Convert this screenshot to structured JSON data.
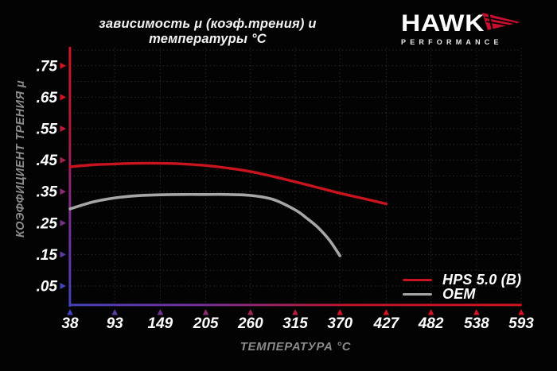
{
  "header": {
    "title": "зависимость μ (коэф.трения) и температуры °C",
    "logo": {
      "brand": "HAWK",
      "subtitle": "PERFORMANCE"
    }
  },
  "chart_data": {
    "type": "line",
    "title": "зависимость μ (коэф.трения) и температуры °C",
    "xlabel": "ТЕМПЕРАТУРА °C",
    "ylabel": "КОЭФФИЦИЕНТ ТРЕНИЯ μ",
    "x_ticks": [
      38,
      93,
      149,
      205,
      260,
      315,
      370,
      427,
      482,
      538,
      593
    ],
    "y_ticks": [
      0.05,
      0.15,
      0.25,
      0.35,
      0.45,
      0.55,
      0.65,
      0.75
    ],
    "y_tick_labels": [
      ".05",
      ".15",
      ".25",
      ".35",
      ".45",
      ".55",
      ".65",
      ".75"
    ],
    "xlim": [
      38,
      593
    ],
    "ylim": [
      0,
      0.81
    ],
    "grid": {
      "style": "dotted",
      "horizontal_step": 0.05,
      "vertical_at_ticks": true
    },
    "legend_position": "bottom-right",
    "series": [
      {
        "name": "HPS 5.0 (B)",
        "color": "#c9131f",
        "x": [
          38,
          66,
          93,
          121,
          149,
          177,
          205,
          232,
          260,
          288,
          315,
          343,
          370,
          399,
          427
        ],
        "y": [
          0.429,
          0.435,
          0.438,
          0.44,
          0.44,
          0.438,
          0.433,
          0.425,
          0.414,
          0.398,
          0.381,
          0.363,
          0.345,
          0.328,
          0.311
        ]
      },
      {
        "name": "OEM",
        "color": "#a6a6a6",
        "x": [
          38,
          66,
          93,
          121,
          149,
          177,
          205,
          232,
          260,
          288,
          315,
          329,
          343,
          357,
          370
        ],
        "y": [
          0.295,
          0.317,
          0.33,
          0.337,
          0.34,
          0.341,
          0.341,
          0.341,
          0.338,
          0.325,
          0.292,
          0.266,
          0.236,
          0.196,
          0.146
        ]
      }
    ],
    "colors": {
      "background": "#030303",
      "grid": "#2f2f2f",
      "tick_text": "#ffffff",
      "axis_title": "#8a8a8a",
      "axis_red": "#d51322",
      "axis_blue": "#4343bd",
      "axis_mid_purple": "#7a2f9a",
      "logo_red": "#c8102e"
    }
  }
}
